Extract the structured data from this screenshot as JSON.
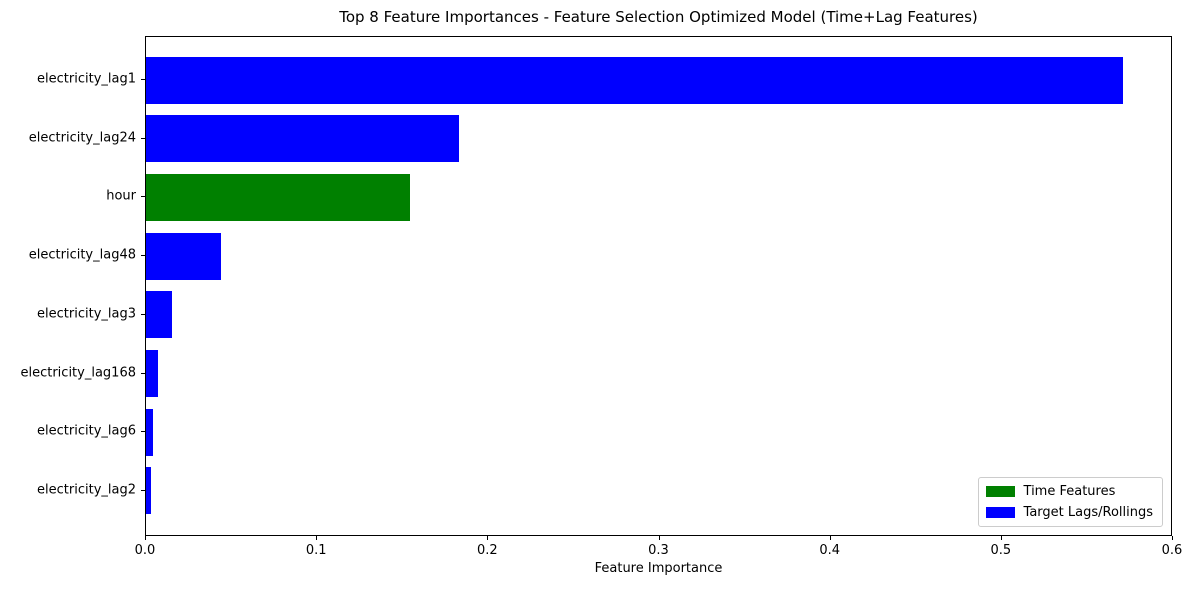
{
  "chart_data": {
    "type": "bar",
    "orientation": "horizontal",
    "title": "Top 8 Feature Importances - Feature Selection Optimized Model (Time+Lag Features)",
    "xlabel": "Feature Importance",
    "ylabel": "",
    "xlim": [
      0.0,
      0.6
    ],
    "xticks": [
      0.0,
      0.1,
      0.2,
      0.3,
      0.4,
      0.5,
      0.6
    ],
    "grid": false,
    "categories": [
      "electricity_lag1",
      "electricity_lag24",
      "hour",
      "electricity_lag48",
      "electricity_lag3",
      "electricity_lag168",
      "electricity_lag6",
      "electricity_lag2"
    ],
    "values": [
      0.571,
      0.183,
      0.154,
      0.044,
      0.015,
      0.007,
      0.004,
      0.003
    ],
    "bar_colors": [
      "#0000ff",
      "#0000ff",
      "#008000",
      "#0000ff",
      "#0000ff",
      "#0000ff",
      "#0000ff",
      "#0000ff"
    ],
    "legend": {
      "position": "lower right",
      "entries": [
        {
          "label": "Time Features",
          "color": "#008000"
        },
        {
          "label": "Target Lags/Rollings",
          "color": "#0000ff"
        }
      ]
    },
    "colors": {
      "time_features": "#008000",
      "target_lags_rollings": "#0000ff",
      "background": "#ffffff",
      "axis": "#000000"
    }
  }
}
